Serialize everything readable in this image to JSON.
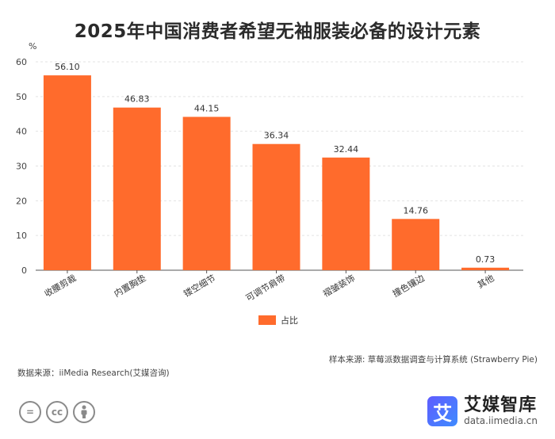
{
  "title": "2025年中国消费者希望无袖服装必备的设计元素",
  "chart_data": {
    "type": "bar",
    "title": "2025年中国消费者希望无袖服装必备的设计元素",
    "ylabel": "%",
    "xlabel": "",
    "ylim": [
      0,
      60
    ],
    "yticks": [
      0,
      10,
      20,
      30,
      40,
      50,
      60
    ],
    "categories": [
      "收腰剪裁",
      "内置胸垫",
      "镂空细节",
      "可调节肩带",
      "褶皱装饰",
      "撞色镶边",
      "其他"
    ],
    "series": [
      {
        "name": "占比",
        "values": [
          56.1,
          46.83,
          44.15,
          36.34,
          32.44,
          14.76,
          0.73
        ],
        "color": "#ff6b2c"
      }
    ],
    "value_labels": [
      "56.10",
      "46.83",
      "44.15",
      "36.34",
      "32.44",
      "14.76",
      "0.73"
    ],
    "legend": {
      "position": "bottom-center",
      "label": "占比"
    },
    "grid": true
  },
  "legend_label": "占比",
  "sample_source": "样本来源: 草莓派数据调查与计算系统 (Strawberry Pie)",
  "data_source": "数据来源：iiMedia Research(艾媒咨询)",
  "cc": {
    "c1": "=",
    "c2": "cc"
  },
  "brand": {
    "logo_char": "艾",
    "name": "艾媒智库",
    "url": "data.iimedia.cn"
  }
}
